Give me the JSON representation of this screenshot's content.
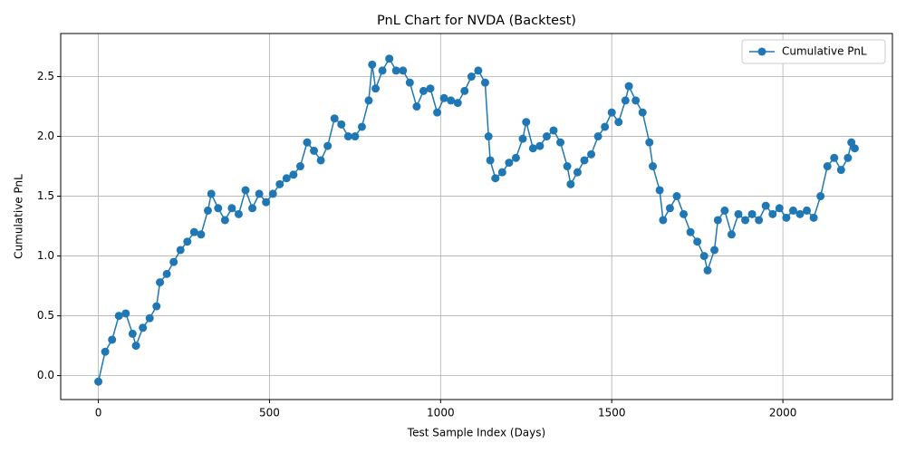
{
  "chart_data": {
    "type": "line",
    "title": "PnL Chart for NVDA (Backtest)",
    "x_label": "Test Sample Index (Days)",
    "y_label": "Cumulative PnL",
    "x": [
      0,
      20,
      40,
      60,
      80,
      100,
      110,
      130,
      150,
      170,
      180,
      200,
      220,
      240,
      260,
      280,
      300,
      320,
      330,
      350,
      370,
      390,
      410,
      430,
      450,
      470,
      490,
      510,
      530,
      550,
      570,
      590,
      610,
      630,
      650,
      670,
      690,
      710,
      730,
      750,
      770,
      790,
      800,
      810,
      830,
      850,
      870,
      890,
      910,
      930,
      950,
      970,
      990,
      1010,
      1030,
      1050,
      1070,
      1090,
      1110,
      1130,
      1140,
      1145,
      1160,
      1180,
      1200,
      1220,
      1240,
      1250,
      1270,
      1290,
      1310,
      1330,
      1350,
      1370,
      1380,
      1400,
      1420,
      1440,
      1460,
      1480,
      1500,
      1520,
      1540,
      1550,
      1570,
      1590,
      1610,
      1620,
      1640,
      1650,
      1670,
      1690,
      1710,
      1730,
      1750,
      1770,
      1780,
      1800,
      1810,
      1830,
      1850,
      1870,
      1890,
      1910,
      1930,
      1950,
      1970,
      1990,
      2010,
      2030,
      2050,
      2070,
      2090,
      2110,
      2130,
      2150,
      2170,
      2190,
      2200,
      2210
    ],
    "series": [
      {
        "name": "Cumulative PnL",
        "color": "#1f77b4",
        "values": [
          -0.05,
          0.2,
          0.3,
          0.5,
          0.52,
          0.35,
          0.25,
          0.4,
          0.48,
          0.58,
          0.78,
          0.85,
          0.95,
          1.05,
          1.12,
          1.2,
          1.18,
          1.38,
          1.52,
          1.4,
          1.3,
          1.4,
          1.35,
          1.55,
          1.4,
          1.52,
          1.45,
          1.52,
          1.6,
          1.65,
          1.68,
          1.75,
          1.95,
          1.88,
          1.8,
          1.92,
          2.15,
          2.1,
          2.0,
          2.0,
          2.08,
          2.3,
          2.6,
          2.4,
          2.55,
          2.65,
          2.55,
          2.55,
          2.45,
          2.25,
          2.38,
          2.4,
          2.2,
          2.32,
          2.3,
          2.28,
          2.38,
          2.5,
          2.55,
          2.45,
          2.0,
          1.8,
          1.65,
          1.7,
          1.78,
          1.82,
          1.98,
          2.12,
          1.9,
          1.92,
          2.0,
          2.05,
          1.95,
          1.75,
          1.6,
          1.7,
          1.8,
          1.85,
          2.0,
          2.08,
          2.2,
          2.12,
          2.3,
          2.42,
          2.3,
          2.2,
          1.95,
          1.75,
          1.55,
          1.3,
          1.4,
          1.5,
          1.35,
          1.2,
          1.12,
          1.0,
          0.88,
          1.05,
          1.3,
          1.38,
          1.18,
          1.35,
          1.3,
          1.35,
          1.3,
          1.42,
          1.35,
          1.4,
          1.32,
          1.38,
          1.35,
          1.38,
          1.32,
          1.5,
          1.75,
          1.82,
          1.72,
          1.82,
          1.95,
          1.9
        ]
      }
    ],
    "xlim": [
      -110,
      2320
    ],
    "ylim": [
      -0.2,
      2.86
    ],
    "xticks": [
      0,
      500,
      1000,
      1500,
      2000
    ],
    "yticks": [
      {
        "value": 0,
        "label": "0.0"
      },
      0.5,
      {
        "value": 1,
        "label": "1.0"
      },
      1.5,
      {
        "value": 2,
        "label": "2.0"
      },
      2.5
    ],
    "grid": true,
    "legend": "upper right"
  }
}
